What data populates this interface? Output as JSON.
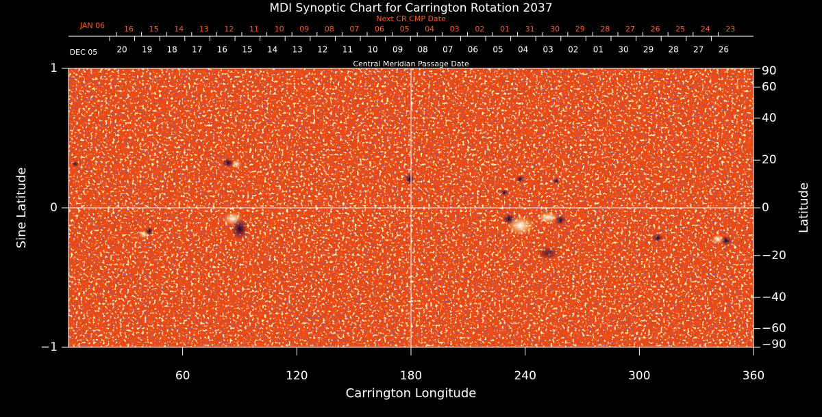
{
  "chart_data": {
    "type": "image",
    "title": "MDI Synoptic Chart for Carrington Rotation 2037",
    "xlabel": "Carrington Longitude",
    "ylabel": "Sine Latitude",
    "y2label": "Latitude",
    "xlim": [
      0,
      360
    ],
    "xticks": [
      60,
      120,
      180,
      240,
      300,
      360
    ],
    "ylim": [
      -1,
      1
    ],
    "yticks": [
      {
        "value": -1,
        "label": "−1"
      },
      0,
      1
    ],
    "y2ticks": [
      90,
      60,
      40,
      20,
      0,
      {
        "value": -20,
        "label": "−20"
      },
      {
        "value": -40,
        "label": "−40"
      },
      {
        "value": -60,
        "label": "−60"
      },
      {
        "value": -90,
        "label": "−90"
      }
    ],
    "next_cr_axis": {
      "label": "Next CR CMP Date",
      "month": "JAN 06",
      "days": [
        "16",
        "15",
        "14",
        "13",
        "12",
        "11",
        "10",
        "09",
        "08",
        "07",
        "06",
        "05",
        "04",
        "03",
        "02",
        "01",
        "31",
        "30",
        "29",
        "28",
        "27",
        "26",
        "25",
        "24",
        "23"
      ]
    },
    "cmp_axis": {
      "label": "Central Meridian Passage Date",
      "month": "DEC 05",
      "days": [
        "20",
        "19",
        "18",
        "17",
        "16",
        "15",
        "14",
        "13",
        "12",
        "11",
        "10",
        "09",
        "08",
        "07",
        "06",
        "05",
        "04",
        "03",
        "02",
        "01",
        "30",
        "29",
        "28",
        "27",
        "26"
      ]
    }
  }
}
